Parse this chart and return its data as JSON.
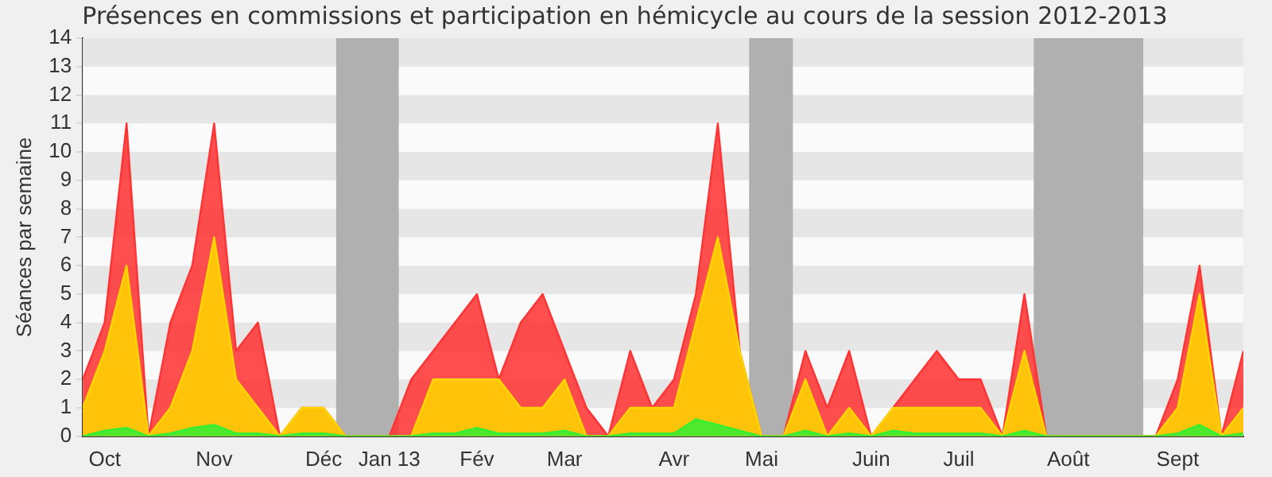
{
  "chart_data": {
    "type": "area",
    "title": "Présences en commissions et participation en hémicycle au cours de la session 2012-2013",
    "ylabel": "Séances par semaine",
    "x": [
      "2012-10-01",
      "2012-10-08",
      "2012-10-15",
      "2012-10-22",
      "2012-10-29",
      "2012-11-05",
      "2012-11-12",
      "2012-11-19",
      "2012-11-26",
      "2012-12-03",
      "2012-12-10",
      "2012-12-17",
      "2012-12-24",
      "2012-12-31",
      "2013-01-07",
      "2013-01-14",
      "2013-01-21",
      "2013-01-28",
      "2013-02-04",
      "2013-02-11",
      "2013-02-18",
      "2013-02-25",
      "2013-03-04",
      "2013-03-11",
      "2013-03-18",
      "2013-03-25",
      "2013-04-01",
      "2013-04-08",
      "2013-04-15",
      "2013-04-22",
      "2013-04-29",
      "2013-05-06",
      "2013-05-13",
      "2013-05-20",
      "2013-05-27",
      "2013-06-03",
      "2013-06-10",
      "2013-06-17",
      "2013-06-24",
      "2013-07-01",
      "2013-07-08",
      "2013-07-15",
      "2013-07-22",
      "2013-07-29",
      "2013-08-05",
      "2013-08-12",
      "2013-08-19",
      "2013-08-26",
      "2013-09-02",
      "2013-09-09",
      "2013-09-16",
      "2013-09-23",
      "2013-09-30",
      "2013-10-07"
    ],
    "series": [
      {
        "color": "#ff3333",
        "values": [
          2,
          4,
          11,
          0,
          4,
          6,
          11,
          3,
          4,
          0,
          1,
          1,
          0,
          0,
          0,
          2,
          3,
          4,
          5,
          2,
          4,
          5,
          3,
          1,
          0,
          3,
          1,
          2,
          5,
          11,
          3,
          0,
          0,
          3,
          1,
          3,
          0,
          1,
          2,
          3,
          2,
          2,
          0,
          5,
          0,
          0,
          0,
          0,
          0,
          0,
          2,
          6,
          0,
          3
        ]
      },
      {
        "color": "#ffd700",
        "values": [
          1,
          3,
          6,
          0,
          1,
          3,
          7,
          2,
          1,
          0,
          1,
          1,
          0,
          0,
          0,
          0,
          2,
          2,
          2,
          2,
          1,
          1,
          2,
          0,
          0,
          1,
          1,
          1,
          4,
          7,
          3,
          0,
          0,
          2,
          0,
          1,
          0,
          1,
          1,
          1,
          1,
          1,
          0,
          3,
          0,
          0,
          0,
          0,
          0,
          0,
          1,
          5,
          0,
          1
        ]
      },
      {
        "color": "#33ee33",
        "values": [
          0,
          0.2,
          0.3,
          0,
          0.1,
          0.3,
          0.4,
          0.1,
          0.1,
          0,
          0.1,
          0.1,
          0,
          0,
          0,
          0,
          0.1,
          0.1,
          0.3,
          0.1,
          0.1,
          0.1,
          0.2,
          0,
          0,
          0.1,
          0.1,
          0.1,
          0.6,
          0.4,
          0.2,
          0,
          0,
          0.2,
          0,
          0.1,
          0,
          0.2,
          0.1,
          0.1,
          0.1,
          0.1,
          0,
          0.2,
          0,
          0,
          0,
          0,
          0,
          0,
          0.1,
          0.4,
          0,
          0.1
        ]
      }
    ],
    "xlim": [
      "2012-10-01",
      "2013-10-07"
    ],
    "xticks": [
      {
        "value": "2012-10-08",
        "label": "Oct"
      },
      {
        "value": "2012-11-12",
        "label": "Nov"
      },
      {
        "value": "2012-12-17",
        "label": "Déc"
      },
      {
        "value": "2013-01-07",
        "label": "Jan 13"
      },
      {
        "value": "2013-02-04",
        "label": "Fév"
      },
      {
        "value": "2013-03-04",
        "label": "Mar"
      },
      {
        "value": "2013-04-08",
        "label": "Avr"
      },
      {
        "value": "2013-05-06",
        "label": "Mai"
      },
      {
        "value": "2013-06-10",
        "label": "Juin"
      },
      {
        "value": "2013-07-08",
        "label": "Juil"
      },
      {
        "value": "2013-08-12",
        "label": "Août"
      },
      {
        "value": "2013-09-16",
        "label": "Sept"
      }
    ],
    "ylim": [
      0,
      14
    ],
    "yticks": [
      0,
      1,
      2,
      3,
      4,
      5,
      6,
      7,
      8,
      9,
      10,
      11,
      12,
      13,
      14
    ],
    "bands": [
      {
        "axis": "x",
        "from": "2012-12-21",
        "to": "2013-01-10",
        "color": "#b0b0b0"
      },
      {
        "axis": "x",
        "from": "2013-05-02",
        "to": "2013-05-16",
        "color": "#b0b0b0"
      },
      {
        "axis": "x",
        "from": "2013-08-01",
        "to": "2013-09-05",
        "color": "#b0b0b0"
      }
    ],
    "legend": false,
    "marker": "none"
  }
}
